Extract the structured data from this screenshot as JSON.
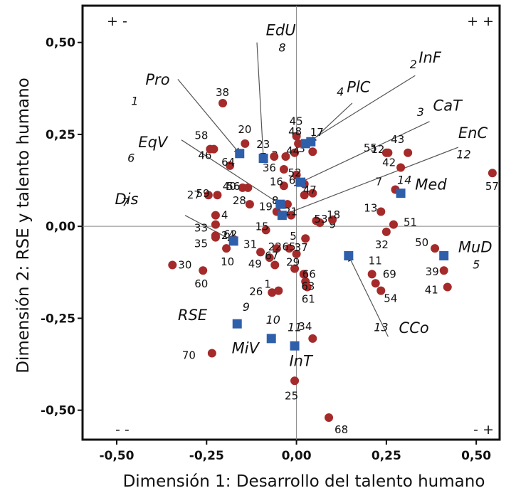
{
  "chart_data": {
    "type": "scatter",
    "xlabel": "Dimensión 1: Desarrollo del talento humano",
    "ylabel": "Dimensión 2: RSE y talento humano",
    "xlim": [
      -0.595,
      0.565
    ],
    "ylim": [
      -0.58,
      0.6
    ],
    "xticks": [
      -0.5,
      -0.25,
      0.0,
      0.25,
      0.5
    ],
    "yticks": [
      -0.5,
      -0.25,
      0.0,
      0.25,
      0.5
    ],
    "xtick_labels": [
      "-0,50",
      "-0,25",
      "0,00",
      "0,25",
      "0,50"
    ],
    "ytick_labels": [
      "-0,50",
      "-0,25",
      "0,00",
      "0,25",
      "0,50"
    ],
    "grid": false,
    "reference_lines": {
      "x": 0,
      "y": 0
    },
    "quadrant_labels": [
      {
        "text": "+ -",
        "position": "top-left"
      },
      {
        "text": "+ +",
        "position": "top-right"
      },
      {
        "text": "- -",
        "position": "bottom-left"
      },
      {
        "text": "- +",
        "position": "bottom-right"
      }
    ],
    "colors": {
      "points": "#a52a2a",
      "categories": "#2e5fab",
      "arrows": "#555555"
    },
    "points": [
      {
        "label": "1",
        "x": -0.05,
        "y": -0.175
      },
      {
        "label": "2",
        "x": -0.03,
        "y": 0.19
      },
      {
        "label": "3",
        "x": 0.045,
        "y": 0.203
      },
      {
        "label": "4",
        "x": -0.225,
        "y": 0.03
      },
      {
        "label": "5",
        "x": 0.025,
        "y": -0.033
      },
      {
        "label": "6",
        "x": 0.022,
        "y": 0.115
      },
      {
        "label": "7",
        "x": 0.275,
        "y": 0.1
      },
      {
        "label": "8",
        "x": -0.025,
        "y": 0.06
      },
      {
        "label": "9",
        "x": 0.055,
        "y": 0.015
      },
      {
        "label": "10",
        "x": -0.195,
        "y": -0.06
      },
      {
        "label": "11",
        "x": 0.21,
        "y": -0.13
      },
      {
        "label": "12",
        "x": 0.255,
        "y": 0.2
      },
      {
        "label": "13",
        "x": 0.235,
        "y": 0.04
      },
      {
        "label": "14",
        "x": 0.045,
        "y": 0.09
      },
      {
        "label": "15",
        "x": -0.085,
        "y": -0.01
      },
      {
        "label": "16",
        "x": -0.035,
        "y": 0.11
      },
      {
        "label": "17",
        "x": 0.022,
        "y": 0.225
      },
      {
        "label": "18",
        "x": 0.1,
        "y": 0.018
      },
      {
        "label": "19",
        "x": -0.055,
        "y": 0.04
      },
      {
        "label": "20",
        "x": -0.143,
        "y": 0.225
      },
      {
        "label": "21",
        "x": -0.015,
        "y": 0.03
      },
      {
        "label": "22",
        "x": -0.055,
        "y": -0.06
      },
      {
        "label": "23",
        "x": -0.062,
        "y": 0.19
      },
      {
        "label": "24",
        "x": -0.225,
        "y": -0.025
      },
      {
        "label": "25",
        "x": -0.005,
        "y": -0.42
      },
      {
        "label": "26",
        "x": -0.068,
        "y": -0.18
      },
      {
        "label": "27",
        "x": -0.245,
        "y": 0.085
      },
      {
        "label": "28",
        "x": -0.13,
        "y": 0.06
      },
      {
        "label": "29",
        "x": -0.005,
        "y": -0.115
      },
      {
        "label": "30",
        "x": -0.345,
        "y": -0.105
      },
      {
        "label": "31",
        "x": -0.1,
        "y": -0.07
      },
      {
        "label": "32",
        "x": 0.25,
        "y": -0.015
      },
      {
        "label": "33",
        "x": -0.225,
        "y": 0.005
      },
      {
        "label": "34",
        "x": 0.045,
        "y": -0.305
      },
      {
        "label": "35",
        "x": -0.225,
        "y": -0.03
      },
      {
        "label": "36",
        "x": -0.035,
        "y": 0.155
      },
      {
        "label": "37",
        "x": 0.0,
        "y": -0.075
      },
      {
        "label": "38",
        "x": -0.205,
        "y": 0.335
      },
      {
        "label": "39",
        "x": 0.41,
        "y": -0.12
      },
      {
        "label": "40",
        "x": -0.15,
        "y": 0.105
      },
      {
        "label": "41",
        "x": 0.42,
        "y": -0.165
      },
      {
        "label": "42",
        "x": 0.29,
        "y": 0.16
      },
      {
        "label": "43",
        "x": 0.31,
        "y": 0.2
      },
      {
        "label": "44",
        "x": -0.005,
        "y": 0.2
      },
      {
        "label": "45",
        "x": 0.0,
        "y": 0.245
      },
      {
        "label": "46",
        "x": -0.23,
        "y": 0.21
      },
      {
        "label": "47",
        "x": 0.022,
        "y": 0.085
      },
      {
        "label": "48",
        "x": 0.005,
        "y": 0.225
      },
      {
        "label": "49",
        "x": -0.075,
        "y": -0.085
      },
      {
        "label": "50",
        "x": 0.385,
        "y": -0.06
      },
      {
        "label": "51",
        "x": 0.27,
        "y": 0.005
      },
      {
        "label": "52",
        "x": 0.0,
        "y": 0.14
      },
      {
        "label": "53",
        "x": 0.065,
        "y": 0.01
      },
      {
        "label": "54",
        "x": 0.235,
        "y": -0.175
      },
      {
        "label": "55",
        "x": 0.25,
        "y": 0.2
      },
      {
        "label": "56",
        "x": -0.135,
        "y": 0.105
      },
      {
        "label": "57",
        "x": 0.545,
        "y": 0.145
      },
      {
        "label": "58",
        "x": -0.24,
        "y": 0.21
      },
      {
        "label": "59",
        "x": -0.22,
        "y": 0.085
      },
      {
        "label": "60",
        "x": -0.26,
        "y": -0.12
      },
      {
        "label": "61",
        "x": 0.03,
        "y": -0.165
      },
      {
        "label": "62",
        "x": -0.175,
        "y": -0.035
      },
      {
        "label": "63",
        "x": 0.025,
        "y": -0.15
      },
      {
        "label": "64",
        "x": -0.185,
        "y": 0.165
      },
      {
        "label": "65",
        "x": -0.02,
        "y": -0.06
      },
      {
        "label": "66",
        "x": 0.02,
        "y": -0.13
      },
      {
        "label": "67",
        "x": -0.06,
        "y": -0.105
      },
      {
        "label": "68",
        "x": 0.09,
        "y": -0.52
      },
      {
        "label": "69",
        "x": 0.22,
        "y": -0.155
      },
      {
        "label": "70",
        "x": -0.235,
        "y": -0.345
      }
    ],
    "categories": [
      {
        "number": "1",
        "name": "Pro",
        "x": -0.158,
        "y": 0.198
      },
      {
        "number": "2",
        "name": "InF",
        "x": 0.025,
        "y": 0.225
      },
      {
        "number": "3",
        "name": "CaT",
        "x": 0.012,
        "y": 0.12
      },
      {
        "number": "4",
        "name": "PlC",
        "x": 0.04,
        "y": 0.23
      },
      {
        "number": "5",
        "name": "MuD",
        "x": 0.41,
        "y": -0.08
      },
      {
        "number": "6",
        "name": "EqV",
        "x": -0.045,
        "y": 0.06
      },
      {
        "number": "7",
        "name": "Dis",
        "x": -0.175,
        "y": -0.04
      },
      {
        "number": "8",
        "name": "EdU",
        "x": -0.092,
        "y": 0.185
      },
      {
        "number": "9",
        "name": "RSE",
        "x": -0.165,
        "y": -0.265
      },
      {
        "number": "10",
        "name": "MiV",
        "x": -0.07,
        "y": -0.305
      },
      {
        "number": "11",
        "name": "InT",
        "x": -0.005,
        "y": -0.325
      },
      {
        "number": "12",
        "name": "EnC",
        "x": -0.04,
        "y": 0.03
      },
      {
        "number": "13",
        "name": "CCo",
        "x": 0.145,
        "y": -0.08
      },
      {
        "number": "14",
        "name": "Med",
        "x": 0.29,
        "y": 0.09
      }
    ]
  }
}
